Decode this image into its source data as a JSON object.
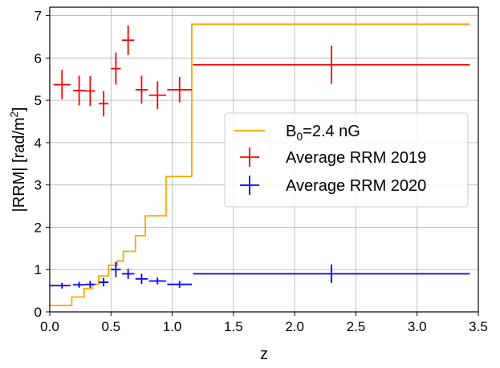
{
  "chart_data": {
    "type": "line",
    "xlabel": "z",
    "ylabel_main": "|RRM| [rad/m",
    "ylabel_sup": "2",
    "ylabel_close": "]",
    "xlim": [
      0.0,
      3.5
    ],
    "ylim": [
      0,
      7.2
    ],
    "xticks": [
      0.0,
      0.5,
      1.0,
      1.5,
      2.0,
      2.5,
      3.0,
      3.5
    ],
    "xtick_labels": [
      "0.0",
      "0.5",
      "1.0",
      "1.5",
      "2.0",
      "2.5",
      "3.0",
      "3.5"
    ],
    "yticks": [
      0,
      1,
      2,
      3,
      4,
      5,
      6,
      7
    ],
    "ytick_labels": [
      "0",
      "1",
      "2",
      "3",
      "4",
      "5",
      "6",
      "7"
    ],
    "grid": true,
    "legend_position": "center-right",
    "step_series": {
      "name_prefix": "B",
      "name_sub": "0",
      "name_suffix": "=2.4 nG",
      "color": "#FFA500",
      "x": [
        0.0,
        0.18,
        0.18,
        0.28,
        0.28,
        0.35,
        0.35,
        0.4,
        0.4,
        0.48,
        0.48,
        0.55,
        0.55,
        0.6,
        0.6,
        0.7,
        0.7,
        0.78,
        0.78,
        0.85,
        0.85,
        0.95,
        0.95,
        1.1,
        1.1,
        1.16,
        1.16,
        3.43
      ],
      "y": [
        0.15,
        0.15,
        0.35,
        0.35,
        0.55,
        0.55,
        0.65,
        0.65,
        0.85,
        0.85,
        1.1,
        1.1,
        1.2,
        1.2,
        1.43,
        1.43,
        1.8,
        1.8,
        2.27,
        2.27,
        2.27,
        2.27,
        3.2,
        3.2,
        3.2,
        3.2,
        6.8,
        6.8
      ]
    },
    "errorbar_series": [
      {
        "name": "Average RRM 2019",
        "color": "#FF0000",
        "points": [
          {
            "x": 0.1,
            "xerr_lo": 0.07,
            "xerr_hi": 0.07,
            "y": 5.37,
            "yerr": 0.35
          },
          {
            "x": 0.24,
            "xerr_lo": 0.05,
            "xerr_hi": 0.05,
            "y": 5.23,
            "yerr": 0.35
          },
          {
            "x": 0.33,
            "xerr_lo": 0.04,
            "xerr_hi": 0.04,
            "y": 5.22,
            "yerr": 0.35
          },
          {
            "x": 0.44,
            "xerr_lo": 0.04,
            "xerr_hi": 0.04,
            "y": 4.92,
            "yerr": 0.3
          },
          {
            "x": 0.54,
            "xerr_lo": 0.04,
            "xerr_hi": 0.04,
            "y": 5.75,
            "yerr": 0.38
          },
          {
            "x": 0.64,
            "xerr_lo": 0.05,
            "xerr_hi": 0.05,
            "y": 6.42,
            "yerr": 0.35
          },
          {
            "x": 0.75,
            "xerr_lo": 0.05,
            "xerr_hi": 0.05,
            "y": 5.25,
            "yerr": 0.33
          },
          {
            "x": 0.88,
            "xerr_lo": 0.07,
            "xerr_hi": 0.07,
            "y": 5.12,
            "yerr": 0.33
          },
          {
            "x": 1.06,
            "xerr_lo": 0.1,
            "xerr_hi": 0.1,
            "y": 5.25,
            "yerr": 0.3
          },
          {
            "x": 2.3,
            "xerr_lo": 1.13,
            "xerr_hi": 1.13,
            "y": 5.84,
            "yerr": 0.45
          }
        ]
      },
      {
        "name": "Average RRM 2020",
        "color": "#0000FF",
        "points": [
          {
            "x": 0.1,
            "xerr_lo": 0.1,
            "xerr_hi": 0.07,
            "y": 0.62,
            "yerr": 0.07
          },
          {
            "x": 0.24,
            "xerr_lo": 0.05,
            "xerr_hi": 0.05,
            "y": 0.64,
            "yerr": 0.07
          },
          {
            "x": 0.33,
            "xerr_lo": 0.04,
            "xerr_hi": 0.04,
            "y": 0.65,
            "yerr": 0.08
          },
          {
            "x": 0.44,
            "xerr_lo": 0.04,
            "xerr_hi": 0.04,
            "y": 0.7,
            "yerr": 0.1
          },
          {
            "x": 0.54,
            "xerr_lo": 0.04,
            "xerr_hi": 0.04,
            "y": 1.0,
            "yerr": 0.18
          },
          {
            "x": 0.64,
            "xerr_lo": 0.05,
            "xerr_hi": 0.05,
            "y": 0.9,
            "yerr": 0.12
          },
          {
            "x": 0.75,
            "xerr_lo": 0.05,
            "xerr_hi": 0.05,
            "y": 0.78,
            "yerr": 0.12
          },
          {
            "x": 0.88,
            "xerr_lo": 0.07,
            "xerr_hi": 0.07,
            "y": 0.73,
            "yerr": 0.08
          },
          {
            "x": 1.06,
            "xerr_lo": 0.1,
            "xerr_hi": 0.1,
            "y": 0.65,
            "yerr": 0.08
          },
          {
            "x": 2.3,
            "xerr_lo": 1.13,
            "xerr_hi": 1.13,
            "y": 0.9,
            "yerr": 0.22
          }
        ]
      }
    ]
  }
}
